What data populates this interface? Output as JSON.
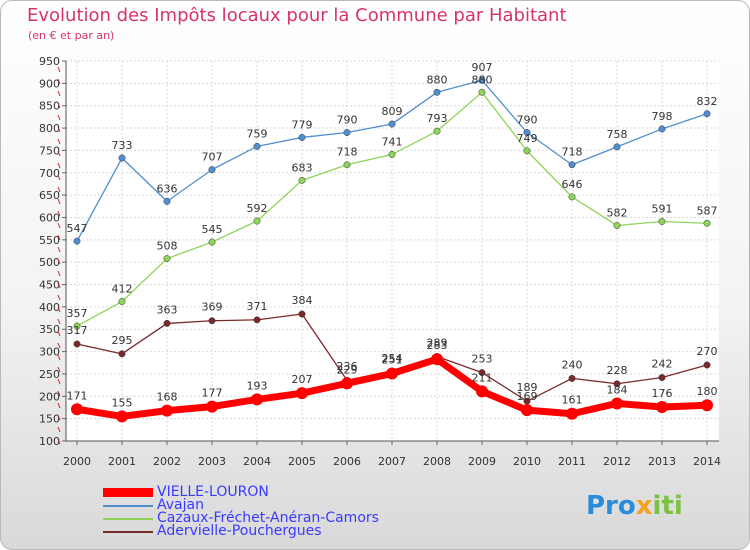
{
  "title": "Evolution des Impôts locaux pour la Commune par Habitant",
  "subtitle": "(en € et par an)",
  "logo": {
    "text_a": "Pro",
    "text_b": "x",
    "text_c": "iti"
  },
  "chart_data": {
    "type": "line",
    "x": [
      "2000",
      "2001",
      "2002",
      "2003",
      "2004",
      "2005",
      "2006",
      "2007",
      "2008",
      "2009",
      "2010",
      "2011",
      "2012",
      "2013",
      "2014"
    ],
    "ylim": [
      100,
      950
    ],
    "yticks": [
      100,
      150,
      200,
      250,
      300,
      350,
      400,
      450,
      500,
      550,
      600,
      650,
      700,
      750,
      800,
      850,
      900,
      950
    ],
    "grid": true,
    "legend_position": "bottom-left",
    "series": [
      {
        "name": "VIELLE-LOURON",
        "color": "#ff0000",
        "values": [
          171,
          155,
          168,
          177,
          193,
          207,
          229,
          251,
          283,
          211,
          169,
          161,
          184,
          176,
          180
        ]
      },
      {
        "name": "Avajan",
        "color": "#4f8fd1",
        "values": [
          547,
          733,
          636,
          707,
          759,
          779,
          790,
          809,
          880,
          907,
          790,
          718,
          758,
          798,
          832
        ]
      },
      {
        "name": "Cazaux-Fréchet-Anéran-Camors",
        "color": "#8fd45a",
        "values": [
          357,
          412,
          508,
          545,
          592,
          683,
          718,
          741,
          793,
          880,
          749,
          646,
          582,
          591,
          587
        ]
      },
      {
        "name": "Adervielle-Pouchergues",
        "color": "#7a2a2a",
        "values": [
          317,
          295,
          363,
          369,
          371,
          384,
          236,
          254,
          289,
          253,
          189,
          240,
          228,
          242,
          270
        ]
      }
    ]
  }
}
